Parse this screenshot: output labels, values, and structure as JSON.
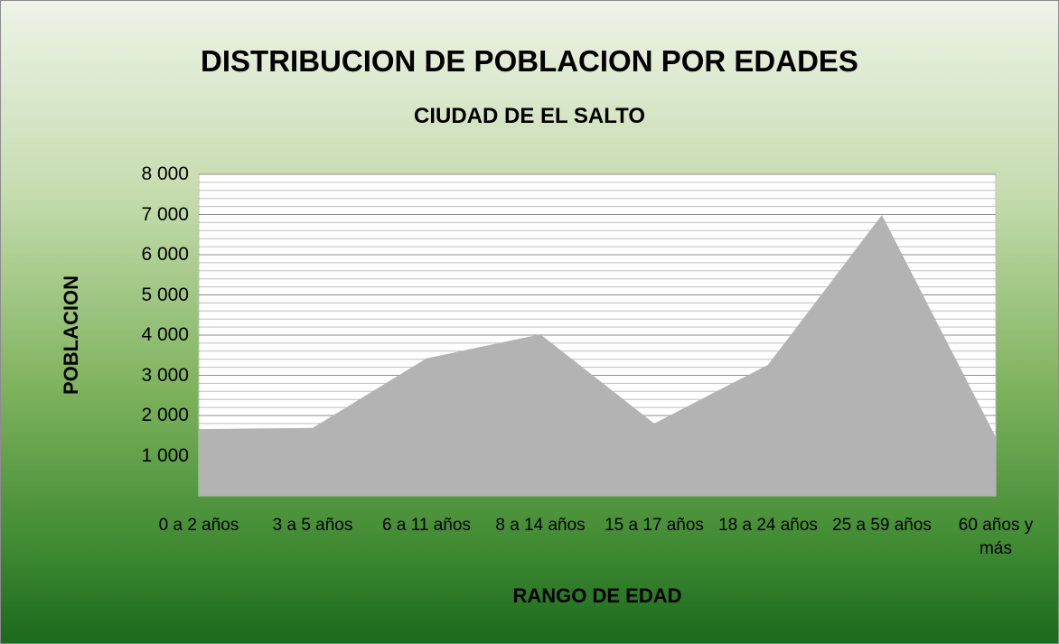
{
  "chart_data": {
    "type": "area",
    "title": "DISTRIBUCION DE POBLACION POR EDADES",
    "subtitle": "CIUDAD DE EL SALTO",
    "x_label": "RANGO DE EDAD",
    "y_label": "POBLACION",
    "categories": [
      "0 a 2 años",
      "3 a 5 años",
      "6 a 11 años",
      "8 a 14 años",
      "15 a 17 años",
      "18 a 24 años",
      "25 a 59 años",
      "60 años y más"
    ],
    "values": [
      1660,
      1690,
      3420,
      4020,
      1800,
      3260,
      6990,
      1460
    ],
    "color": "#b3b3b3",
    "ylim": [
      0,
      8000
    ],
    "yticks": [
      {
        "value": 1000,
        "label": "1 000"
      },
      {
        "value": 2000,
        "label": "2 000"
      },
      {
        "value": 3000,
        "label": "3 000"
      },
      {
        "value": 4000,
        "label": "4 000"
      },
      {
        "value": 5000,
        "label": "5 000"
      },
      {
        "value": 6000,
        "label": "6 000"
      },
      {
        "value": 7000,
        "label": "7 000"
      },
      {
        "value": 8000,
        "label": "8 000"
      }
    ],
    "grid": true,
    "minor_grid_step": 200
  }
}
